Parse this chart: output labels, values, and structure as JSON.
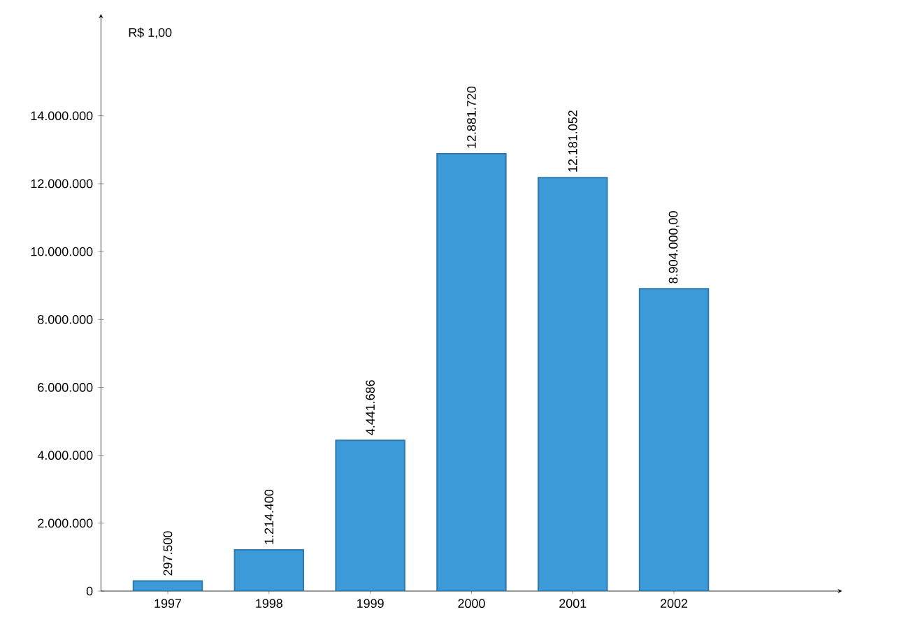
{
  "chart_data": {
    "type": "bar",
    "ylabel": "R$ 1,00",
    "categories": [
      "1997",
      "1998",
      "1999",
      "2000",
      "2001",
      "2002"
    ],
    "values": [
      297500,
      1214400,
      4441686,
      12881720,
      12181052,
      8904000
    ],
    "value_labels": [
      "297.500",
      "1.214.400",
      "4.441.686",
      "12.881.720",
      "12.181.052",
      "8.904.000,00"
    ],
    "color": "#3c9ad8",
    "ylim": [
      0,
      17000000
    ],
    "yticks": [
      0,
      {
        "value": 2000000,
        "label": "2.000.000"
      },
      {
        "value": 4000000,
        "label": "4.000.000"
      },
      {
        "value": 6000000,
        "label": "6.000.000"
      },
      {
        "value": 8000000,
        "label": "8.000.000"
      },
      {
        "value": 10000000,
        "label": "10.000.000"
      },
      {
        "value": 12000000,
        "label": "12.000.000"
      },
      {
        "value": 14000000,
        "label": "14.000.000"
      }
    ],
    "grid": false
  }
}
